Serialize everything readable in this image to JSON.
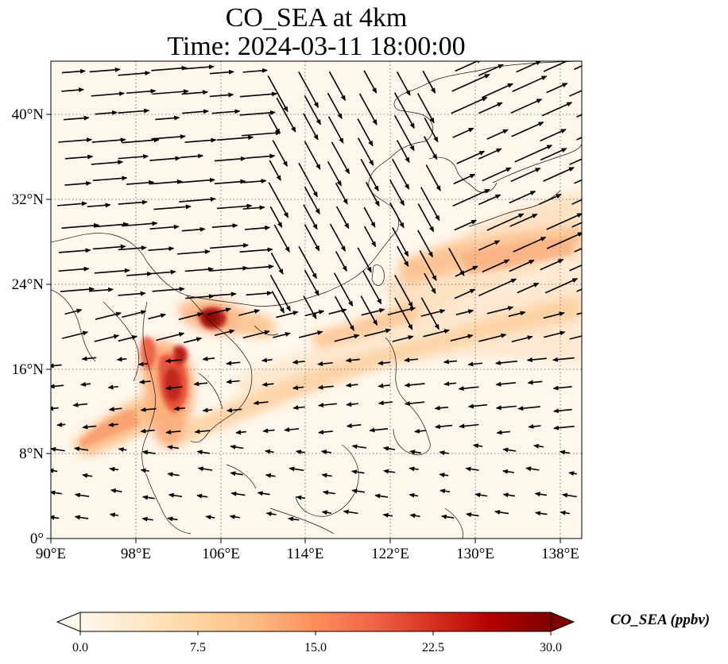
{
  "title": {
    "line1": "CO_SEA at 4km",
    "line2": "Time: 2024-03-11 18:00:00"
  },
  "map": {
    "lon_range": [
      90,
      140
    ],
    "lat_range": [
      0,
      45
    ],
    "grid": "dotted",
    "x_ticks": [
      "90°E",
      "98°E",
      "106°E",
      "114°E",
      "122°E",
      "130°E",
      "138°E"
    ],
    "y_ticks": [
      "0°",
      "8°N",
      "16°N",
      "24°N",
      "32°N",
      "40°N"
    ],
    "field": "CO_SEA",
    "vectors": "wind arrows"
  },
  "colorbar": {
    "label": "CO_SEA (ppbv)",
    "ticks": [
      "0.0",
      "7.5",
      "15.0",
      "22.5",
      "30.0"
    ],
    "range": [
      0,
      30
    ],
    "colormap": "OrRd",
    "extend": "both",
    "colors": [
      "#fff7ec",
      "#fee8c8",
      "#fdd49e",
      "#fdbb84",
      "#fc8d59",
      "#ef6548",
      "#d7301f",
      "#b30000",
      "#7f0000"
    ]
  }
}
